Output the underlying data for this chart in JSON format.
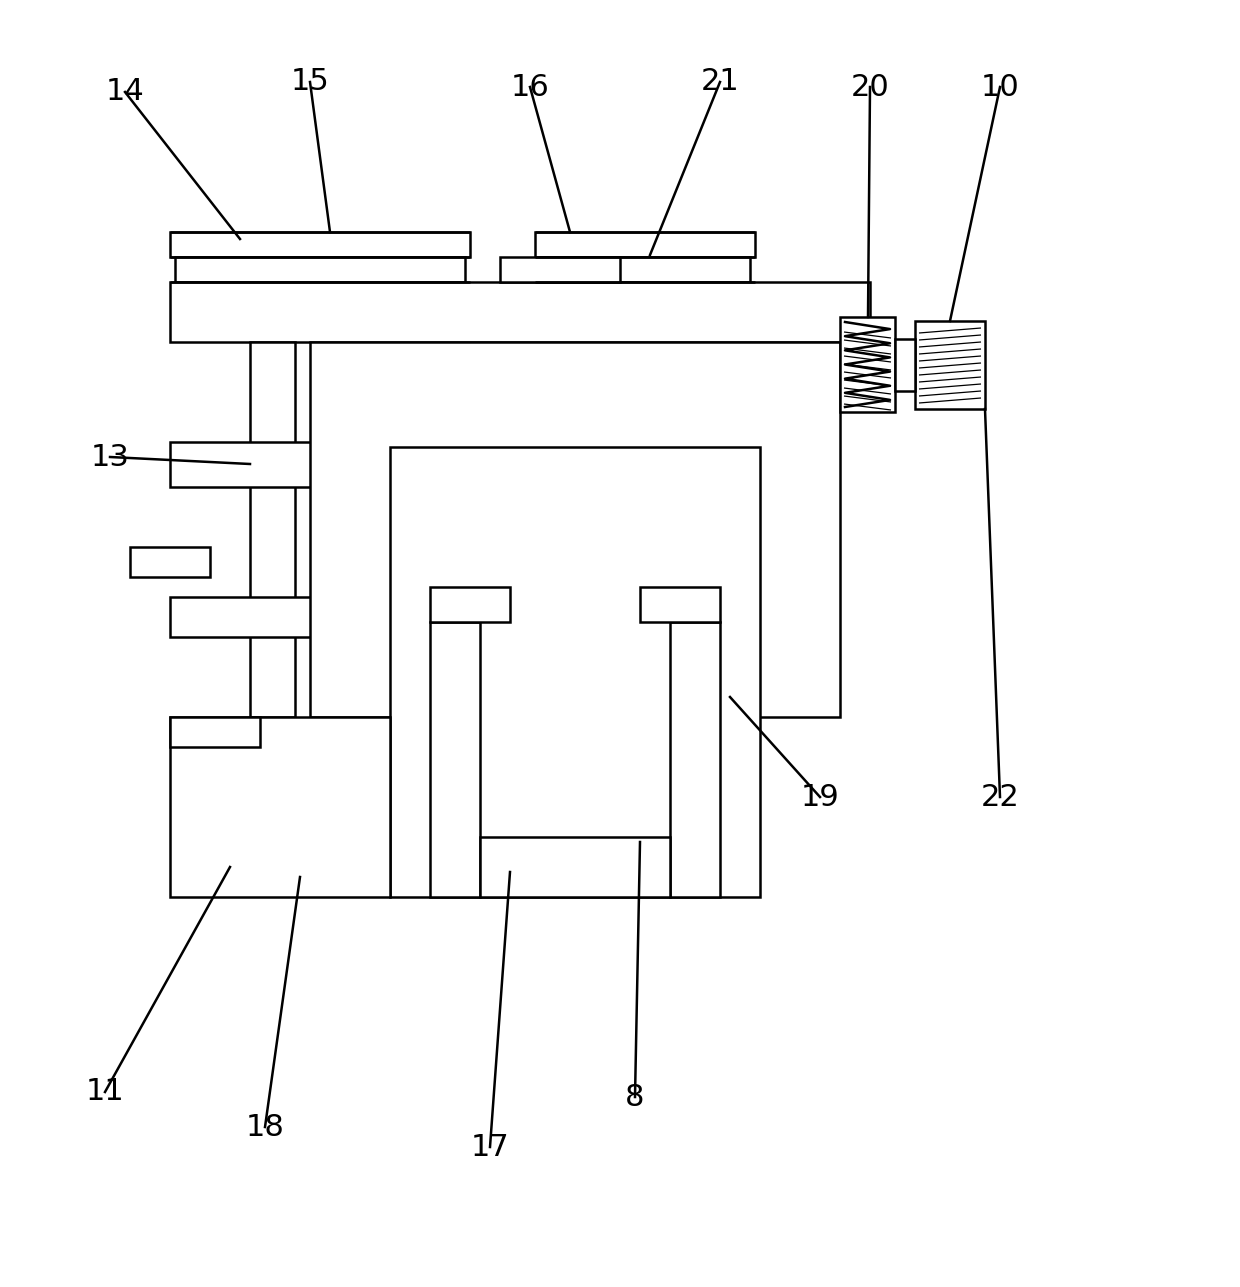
{
  "bg_color": "#ffffff",
  "line_color": "#000000",
  "lw": 1.8,
  "fig_width": 12.4,
  "fig_height": 12.87
}
